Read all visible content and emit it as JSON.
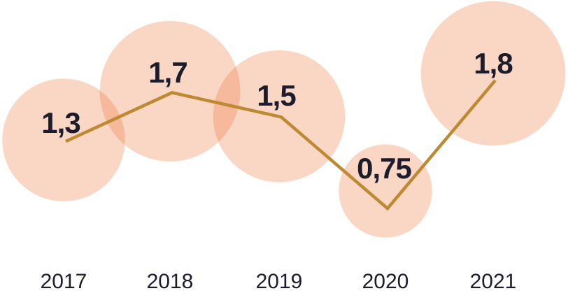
{
  "chart_data": {
    "type": "line",
    "title": "",
    "xlabel": "",
    "ylabel": "",
    "categories": [
      "2017",
      "2018",
      "2019",
      "2020",
      "2021"
    ],
    "series": [
      {
        "name": "value",
        "values": [
          1.3,
          1.7,
          1.5,
          0.75,
          1.8
        ]
      }
    ],
    "value_labels": [
      "1,3",
      "1,7",
      "1,5",
      "0,75",
      "1,8"
    ],
    "decimal_separator": ",",
    "ylim": [
      0,
      2
    ],
    "grid": false,
    "legend": "none",
    "bubbles": {
      "present": true,
      "area_proportional_to_value": true
    },
    "colors": {
      "line": "#BD8A33",
      "bubble_fill": "#F0783C",
      "bubble_opacity": 0.3,
      "label_text": "#1C1C2C",
      "axis_text": "#1C1C2C",
      "background": "#FFFFFF"
    }
  }
}
